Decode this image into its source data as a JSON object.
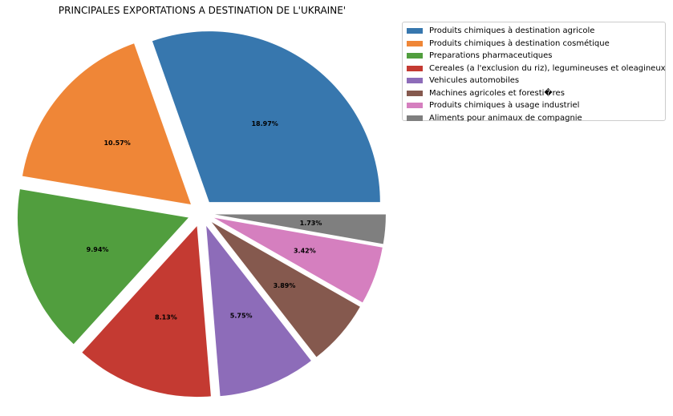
{
  "chart_data": {
    "type": "pie",
    "title": "PRINCIPALES EXPORTATIONS A DESTINATION DE L'UKRAINE'",
    "legend_position": "upper-right-outside",
    "slices": [
      {
        "name": "Produits chimiques à destination agricole",
        "value": 18.97,
        "label": "18.97%",
        "color": "#3777ae"
      },
      {
        "name": "Produits chimiques à destination cosmétique",
        "value": 10.57,
        "label": "10.57%",
        "color": "#ef8637"
      },
      {
        "name": "Preparations pharmaceutiques",
        "value": 9.94,
        "label": "9.94%",
        "color": "#519e3e"
      },
      {
        "name": "Cereales (a l'exclusion du riz), legumineuses et oleagineux",
        "value": 8.13,
        "label": "8.13%",
        "color": "#c43a32"
      },
      {
        "name": "Vehicules automobiles",
        "value": 5.75,
        "label": "5.75%",
        "color": "#8d6cb9"
      },
      {
        "name": "Machines agricoles et foresti�res",
        "value": 3.89,
        "label": "3.89%",
        "color": "#85594e"
      },
      {
        "name": "Produits chimiques à usage industriel",
        "value": 3.42,
        "label": "3.42%",
        "color": "#d57fbf"
      },
      {
        "name": "Aliments pour animaux de compagnie",
        "value": 1.73,
        "label": "1.73%",
        "color": "#7f7f7f"
      }
    ]
  }
}
